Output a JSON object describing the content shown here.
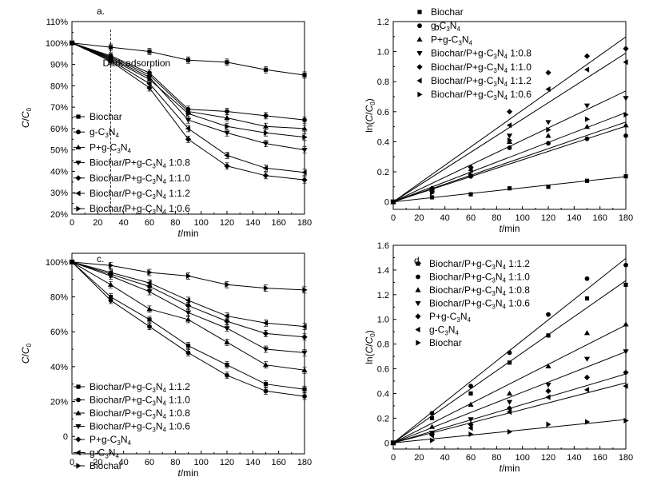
{
  "chart_data": [
    {
      "panel": "a.",
      "type": "line",
      "xlabel_italic": "t",
      "xlabel_unit": "/min",
      "ylabel_c": "C",
      "ylabel_slash": "/",
      "ylabel_c0": "C",
      "ylabel_sub": "0",
      "xlim": [
        0,
        180
      ],
      "ylim": [
        20,
        110
      ],
      "xticks": [
        0,
        20,
        40,
        60,
        80,
        100,
        120,
        140,
        160,
        180
      ],
      "yticks": [
        20,
        30,
        40,
        50,
        60,
        70,
        80,
        90,
        100,
        110
      ],
      "ytick_labels": [
        "20%",
        "30%",
        "40%",
        "50%",
        "60%",
        "70%",
        "80%",
        "90%",
        "100%",
        "110%"
      ],
      "annotation": {
        "text": "Dark adsorption",
        "x": 30
      },
      "x": [
        0,
        30,
        60,
        90,
        120,
        150,
        180
      ],
      "series": [
        {
          "name": "Biochar",
          "marker": "square",
          "values": [
            100,
            98,
            96,
            92,
            91,
            87.5,
            85
          ]
        },
        {
          "name": "g-C3N4",
          "marker": "circle",
          "values": [
            100,
            94,
            86,
            69,
            68,
            66,
            64
          ]
        },
        {
          "name": "P+g-C3N4",
          "marker": "triangle-up",
          "values": [
            100,
            93.5,
            85,
            68,
            65,
            61,
            60
          ]
        },
        {
          "name": "Biochar/P+g-C3N4 1:0.8",
          "marker": "triangle-down",
          "values": [
            100,
            93,
            84,
            64,
            58,
            53,
            50
          ]
        },
        {
          "name": "Biochar/P+g-C3N4 1:1.0",
          "marker": "diamond",
          "values": [
            100,
            91.5,
            79,
            55,
            42.5,
            38,
            36
          ]
        },
        {
          "name": "Biochar/P+g-C3N4 1:1.2",
          "marker": "triangle-left",
          "values": [
            100,
            92,
            81,
            60,
            47.5,
            41.5,
            39.5
          ]
        },
        {
          "name": "Biochar/P+g-C3N4 1:0.6",
          "marker": "triangle-right",
          "values": [
            100,
            92.5,
            83,
            67,
            61,
            58,
            56
          ]
        }
      ],
      "legend": [
        {
          "prefix": "Biochar",
          "sub": "",
          "suffix": ""
        },
        {
          "prefix": "g-C",
          "sub": "3",
          "suffix": "N",
          "sub2": "4",
          "tail": ""
        },
        {
          "prefix": "P+g-C",
          "sub": "3",
          "suffix": "N",
          "sub2": "4",
          "tail": ""
        },
        {
          "prefix": "Biochar/P+g-C",
          "sub": "3",
          "suffix": "N",
          "sub2": "4",
          "tail": " 1:0.8"
        },
        {
          "prefix": "Biochar/P+g-C",
          "sub": "3",
          "suffix": "N",
          "sub2": "4",
          "tail": " 1:1.0"
        },
        {
          "prefix": "Biochar/P+g-C",
          "sub": "3",
          "suffix": "N",
          "sub2": "4",
          "tail": " 1:1.2"
        },
        {
          "prefix": "Biochar/P+g-C",
          "sub": "3",
          "suffix": "N",
          "sub2": "4",
          "tail": " 1:0.6"
        }
      ]
    },
    {
      "panel": "b.",
      "type": "scatter",
      "xlabel_italic": "t",
      "xlabel_unit": "/min",
      "ylabel_pre": "ln(",
      "ylabel_c": "C",
      "ylabel_slash": "/",
      "ylabel_c0": "C",
      "ylabel_sub": "0",
      "ylabel_post": ")",
      "xlim": [
        0,
        180
      ],
      "ylim": [
        -0.05,
        1.2
      ],
      "xticks": [
        0,
        20,
        40,
        60,
        80,
        100,
        120,
        140,
        160,
        180
      ],
      "yticks": [
        0,
        0.2,
        0.4,
        0.6,
        0.8,
        1.0,
        1.2
      ],
      "ytick_labels": [
        "0",
        "0.2",
        "0.4",
        "0.6",
        "0.8",
        "1.0",
        "1.2"
      ],
      "x": [
        0,
        30,
        60,
        90,
        120,
        150,
        180
      ],
      "series": [
        {
          "name": "Biochar",
          "marker": "square",
          "values": [
            0,
            0.03,
            0.05,
            0.09,
            0.1,
            0.14,
            0.17
          ],
          "fit_slope": 0.00093
        },
        {
          "name": "g-C3N4",
          "marker": "circle",
          "values": [
            0,
            0.08,
            0.17,
            0.36,
            0.39,
            0.42,
            0.44
          ],
          "fit_slope": 0.0028
        },
        {
          "name": "P+g-C3N4",
          "marker": "triangle-up",
          "values": [
            0,
            0.08,
            0.18,
            0.4,
            0.44,
            0.5,
            0.51
          ],
          "fit_slope": 0.00295
        },
        {
          "name": "Biochar/P+g-C3N4 1:0.8",
          "marker": "triangle-down",
          "values": [
            0,
            0.07,
            0.17,
            0.44,
            0.53,
            0.64,
            0.69
          ],
          "fit_slope": 0.0041
        },
        {
          "name": "Biochar/P+g-C3N4 1:1.0",
          "marker": "diamond",
          "values": [
            0,
            0.09,
            0.23,
            0.6,
            0.86,
            0.97,
            1.02
          ],
          "fit_slope": 0.0061
        },
        {
          "name": "Biochar/P+g-C3N4 1:1.2",
          "marker": "triangle-left",
          "values": [
            0,
            0.08,
            0.21,
            0.51,
            0.75,
            0.88,
            0.93
          ],
          "fit_slope": 0.0055
        },
        {
          "name": "Biochar/P+g-C3N4 1:0.6",
          "marker": "triangle-right",
          "values": [
            0,
            0.06,
            0.18,
            0.41,
            0.48,
            0.55,
            0.58
          ],
          "fit_slope": 0.0033
        }
      ],
      "legend": [
        {
          "prefix": "Biochar",
          "sub": "",
          "suffix": ""
        },
        {
          "prefix": "g-C",
          "sub": "3",
          "suffix": "N",
          "sub2": "4",
          "tail": ""
        },
        {
          "prefix": "P+g-C",
          "sub": "3",
          "suffix": "N",
          "sub2": "4",
          "tail": ""
        },
        {
          "prefix": "Biochar/P+g-C",
          "sub": "3",
          "suffix": "N",
          "sub2": "4",
          "tail": " 1:0.8"
        },
        {
          "prefix": "Biochar/P+g-C",
          "sub": "3",
          "suffix": "N",
          "sub2": "4",
          "tail": " 1:1.0"
        },
        {
          "prefix": "Biochar/P+g-C",
          "sub": "3",
          "suffix": "N",
          "sub2": "4",
          "tail": " 1:1.2"
        },
        {
          "prefix": "Biochar/P+g-C",
          "sub": "3",
          "suffix": "N",
          "sub2": "4",
          "tail": " 1:0.6"
        }
      ]
    },
    {
      "panel": "c.",
      "type": "line",
      "xlabel_italic": "t",
      "xlabel_unit": "/min",
      "ylabel_c": "C",
      "ylabel_slash": "/",
      "ylabel_c0": "C",
      "ylabel_sub": "0",
      "xlim": [
        0,
        180
      ],
      "ylim": [
        -10,
        105
      ],
      "xticks": [
        0,
        20,
        40,
        60,
        80,
        100,
        120,
        140,
        160,
        180
      ],
      "yticks": [
        0,
        20,
        40,
        60,
        80,
        100
      ],
      "ytick_labels": [
        "0",
        "20%",
        "40%",
        "60%",
        "80%",
        "100%"
      ],
      "x": [
        0,
        30,
        60,
        90,
        120,
        150,
        180
      ],
      "series": [
        {
          "name": "Biochar/P+g-C3N4 1:1.2",
          "marker": "square",
          "values": [
            100,
            80,
            67,
            52,
            41,
            30,
            27
          ]
        },
        {
          "name": "Biochar/P+g-C3N4 1:1.0",
          "marker": "circle",
          "values": [
            100,
            78,
            63,
            48,
            35,
            26,
            23
          ]
        },
        {
          "name": "Biochar/P+g-C3N4 1:0.8",
          "marker": "triangle-up",
          "values": [
            100,
            87,
            73,
            67,
            54,
            41,
            38
          ]
        },
        {
          "name": "Biochar/P+g-C3N4 1:0.6",
          "marker": "triangle-down",
          "values": [
            100,
            92,
            83,
            71,
            62,
            50,
            48
          ]
        },
        {
          "name": "P+g-C3N4",
          "marker": "diamond",
          "values": [
            100,
            93,
            86,
            75,
            66,
            59,
            57
          ]
        },
        {
          "name": "g-C3N4",
          "marker": "triangle-left",
          "values": [
            100,
            94,
            88,
            78,
            69,
            65,
            63
          ]
        },
        {
          "name": "Biochar",
          "marker": "triangle-right",
          "values": [
            100,
            98,
            94,
            92,
            87,
            85,
            84
          ]
        }
      ],
      "legend": [
        {
          "prefix": "Biochar/P+g-C",
          "sub": "3",
          "suffix": "N",
          "sub2": "4",
          "tail": " 1:1.2"
        },
        {
          "prefix": "Biochar/P+g-C",
          "sub": "3",
          "suffix": "N",
          "sub2": "4",
          "tail": " 1:1.0"
        },
        {
          "prefix": "Biochar/P+g-C",
          "sub": "3",
          "suffix": "N",
          "sub2": "4",
          "tail": " 1:0.8"
        },
        {
          "prefix": "Biochar/P+g-C",
          "sub": "3",
          "suffix": "N",
          "sub2": "4",
          "tail": " 1:0.6"
        },
        {
          "prefix": "P+g-C",
          "sub": "3",
          "suffix": "N",
          "sub2": "4",
          "tail": ""
        },
        {
          "prefix": "g-C",
          "sub": "3",
          "suffix": "N",
          "sub2": "4",
          "tail": ""
        },
        {
          "prefix": "Biochar",
          "sub": "",
          "suffix": ""
        }
      ]
    },
    {
      "panel": "d.",
      "type": "scatter",
      "xlabel_italic": "t",
      "xlabel_unit": "/min",
      "ylabel_pre": "ln(",
      "ylabel_c": "C",
      "ylabel_slash": "/",
      "ylabel_c0": "C",
      "ylabel_sub": "0",
      "ylabel_post": ")",
      "xlim": [
        0,
        180
      ],
      "ylim": [
        -0.05,
        1.6
      ],
      "xticks": [
        0,
        20,
        40,
        60,
        80,
        100,
        120,
        140,
        160,
        180
      ],
      "yticks": [
        0,
        0.2,
        0.4,
        0.6,
        0.8,
        1.0,
        1.2,
        1.4,
        1.6
      ],
      "ytick_labels": [
        "0",
        "0.2",
        "0.4",
        "0.6",
        "0.8",
        "1.0",
        "1.2",
        "1.4",
        "1.6"
      ],
      "x": [
        0,
        30,
        60,
        90,
        120,
        150,
        180
      ],
      "series": [
        {
          "name": "Biochar/P+g-C3N4 1:1.2",
          "marker": "square",
          "values": [
            0,
            0.2,
            0.4,
            0.65,
            0.87,
            1.17,
            1.28
          ],
          "fit_slope": 0.0073
        },
        {
          "name": "Biochar/P+g-C3N4 1:1.0",
          "marker": "circle",
          "values": [
            0,
            0.24,
            0.46,
            0.73,
            1.04,
            1.33,
            1.44
          ],
          "fit_slope": 0.0083
        },
        {
          "name": "Biochar/P+g-C3N4 1:0.8",
          "marker": "triangle-up",
          "values": [
            0,
            0.13,
            0.31,
            0.4,
            0.62,
            0.89,
            0.96
          ],
          "fit_slope": 0.0053
        },
        {
          "name": "Biochar/P+g-C3N4 1:0.6",
          "marker": "triangle-down",
          "values": [
            0,
            0.08,
            0.19,
            0.33,
            0.47,
            0.68,
            0.74
          ],
          "fit_slope": 0.0041
        },
        {
          "name": "P+g-C3N4",
          "marker": "diamond",
          "values": [
            0,
            0.07,
            0.15,
            0.28,
            0.42,
            0.53,
            0.57
          ],
          "fit_slope": 0.0031
        },
        {
          "name": "g-C3N4",
          "marker": "triangle-left",
          "values": [
            0,
            0.06,
            0.12,
            0.25,
            0.37,
            0.43,
            0.46
          ],
          "fit_slope": 0.0027
        },
        {
          "name": "Biochar",
          "marker": "triangle-right",
          "values": [
            0,
            0.02,
            0.07,
            0.09,
            0.15,
            0.17,
            0.18
          ],
          "fit_slope": 0.00105
        }
      ],
      "legend": [
        {
          "prefix": "Biochar/P+g-C",
          "sub": "3",
          "suffix": "N",
          "sub2": "4",
          "tail": " 1:1.2"
        },
        {
          "prefix": "Biochar/P+g-C",
          "sub": "3",
          "suffix": "N",
          "sub2": "4",
          "tail": " 1:1.0"
        },
        {
          "prefix": "Biochar/P+g-C",
          "sub": "3",
          "suffix": "N",
          "sub2": "4",
          "tail": " 1:0.8"
        },
        {
          "prefix": "Biochar/P+g-C",
          "sub": "3",
          "suffix": "N",
          "sub2": "4",
          "tail": " 1:0.6"
        },
        {
          "prefix": "P+g-C",
          "sub": "3",
          "suffix": "N",
          "sub2": "4",
          "tail": ""
        },
        {
          "prefix": "g-C",
          "sub": "3",
          "suffix": "N",
          "sub2": "4",
          "tail": ""
        },
        {
          "prefix": "Biochar",
          "sub": "",
          "suffix": ""
        }
      ]
    }
  ]
}
